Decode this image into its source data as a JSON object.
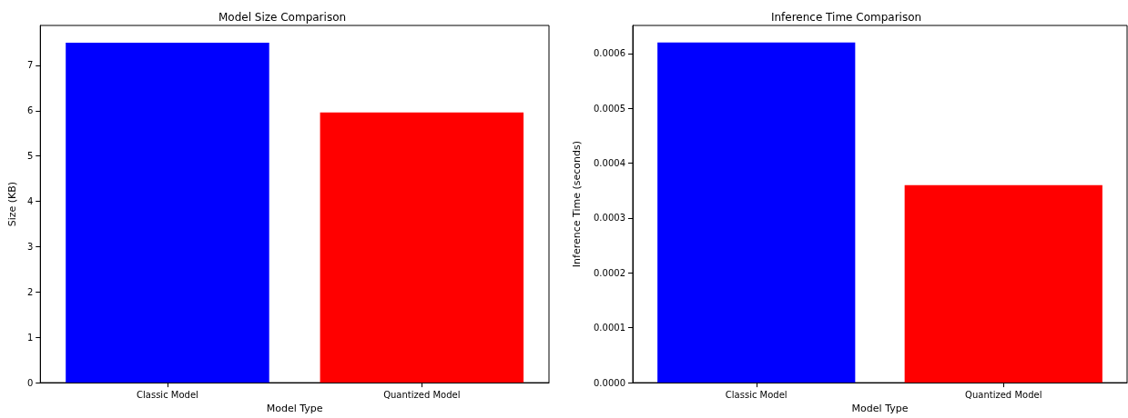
{
  "chart_data": [
    {
      "type": "bar",
      "title": "Model Size Comparison",
      "xlabel": "Model Type",
      "ylabel": "Size (KB)",
      "categories": [
        "Classic Model",
        "Quantized Model"
      ],
      "values": [
        7.5,
        5.96
      ],
      "colors": [
        "#0000ff",
        "#ff0000"
      ],
      "ylim": [
        0,
        7.88
      ],
      "yticks": [
        0,
        1,
        2,
        3,
        4,
        5,
        6,
        7
      ],
      "grid": false
    },
    {
      "type": "bar",
      "title": "Inference Time Comparison",
      "xlabel": "Model Type",
      "ylabel": "Inference Time (seconds)",
      "categories": [
        "Classic Model",
        "Quantized Model"
      ],
      "values": [
        0.00062,
        0.00036
      ],
      "colors": [
        "#0000ff",
        "#ff0000"
      ],
      "ylim": [
        0,
        0.000651
      ],
      "yticks": [
        {
          "value": 0,
          "label": "0.0000"
        },
        {
          "value": 0.0001,
          "label": "0.0001"
        },
        {
          "value": 0.0002,
          "label": "0.0002"
        },
        {
          "value": 0.0003,
          "label": "0.0003"
        },
        {
          "value": 0.0004,
          "label": "0.0004"
        },
        {
          "value": 0.0005,
          "label": "0.0005"
        },
        {
          "value": 0.0006,
          "label": "0.0006"
        }
      ],
      "grid": false
    }
  ]
}
